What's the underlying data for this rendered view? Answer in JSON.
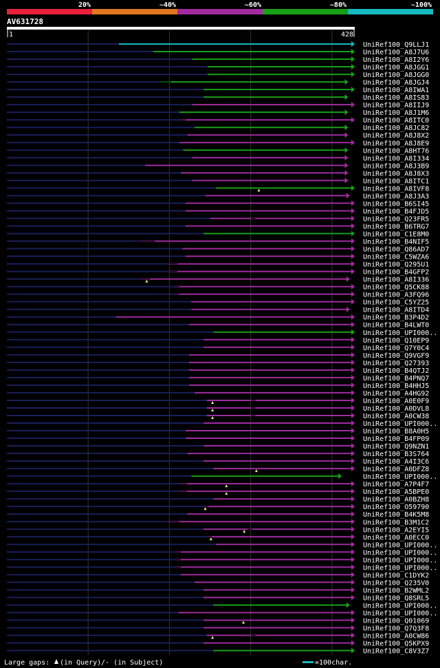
{
  "identity_scale": {
    "labels": [
      "20%",
      "~40%",
      "~60%",
      "~80%",
      "~100%"
    ],
    "colors": [
      "#e8203a",
      "#e07820",
      "#a02ca0",
      "#18a018",
      "#18b8c0"
    ]
  },
  "query": {
    "name": "AV631728",
    "start_label": "1",
    "end_label": "428",
    "length": 428
  },
  "hits": [
    {
      "name": "UniRef100_Q9LLJ1",
      "start": 138,
      "end": 428,
      "color": "cyan",
      "gaps": [],
      "markers": []
    },
    {
      "name": "UniRef100_A8J7U6",
      "start": 180,
      "end": 428,
      "color": "green",
      "gaps": [],
      "markers": []
    },
    {
      "name": "UniRef100_A8I2Y6",
      "start": 228,
      "end": 428,
      "color": "green",
      "gaps": [],
      "markers": []
    },
    {
      "name": "UniRef100_A8JGG1",
      "start": 247,
      "end": 428,
      "color": "green",
      "gaps": [],
      "markers": []
    },
    {
      "name": "UniRef100_A8JGG0",
      "start": 247,
      "end": 428,
      "color": "green",
      "gaps": [],
      "markers": []
    },
    {
      "name": "UniRef100_A8JGJ4",
      "start": 188,
      "end": 420,
      "color": "green",
      "gaps": [
        [
          188,
          202
        ]
      ],
      "markers": []
    },
    {
      "name": "UniRef100_A8IWA1",
      "start": 242,
      "end": 428,
      "color": "green",
      "gaps": [],
      "markers": []
    },
    {
      "name": "UniRef100_A8IS83",
      "start": 242,
      "end": 420,
      "color": "green",
      "gaps": [],
      "markers": []
    },
    {
      "name": "UniRef100_A8IIJ9",
      "start": 228,
      "end": 428,
      "color": "magenta",
      "gaps": [],
      "markers": []
    },
    {
      "name": "UniRef100_A8J1M6",
      "start": 212,
      "end": 420,
      "color": "green",
      "gaps": [],
      "markers": []
    },
    {
      "name": "UniRef100_A8ITC0",
      "start": 212,
      "end": 428,
      "color": "magenta",
      "gaps": [
        [
          212,
          220
        ]
      ],
      "markers": []
    },
    {
      "name": "UniRef100_A8JC82",
      "start": 231,
      "end": 420,
      "color": "green",
      "gaps": [],
      "markers": []
    },
    {
      "name": "UniRef100_A8J8X2",
      "start": 222,
      "end": 420,
      "color": "magenta",
      "gaps": [],
      "markers": []
    },
    {
      "name": "UniRef100_A8J8E9",
      "start": 212,
      "end": 428,
      "color": "magenta",
      "gaps": [],
      "markers": []
    },
    {
      "name": "UniRef100_A8HT76",
      "start": 217,
      "end": 420,
      "color": "green",
      "gaps": [],
      "markers": []
    },
    {
      "name": "UniRef100_A8I334",
      "start": 228,
      "end": 420,
      "color": "magenta",
      "gaps": [],
      "markers": []
    },
    {
      "name": "UniRef100_A8J3B9",
      "start": 170,
      "end": 420,
      "color": "magenta",
      "gaps": [],
      "markers": []
    },
    {
      "name": "UniRef100_A8J8X3",
      "start": 214,
      "end": 420,
      "color": "magenta",
      "gaps": [],
      "markers": []
    },
    {
      "name": "UniRef100_A8ITC1",
      "start": 228,
      "end": 420,
      "color": "magenta",
      "gaps": [],
      "markers": []
    },
    {
      "name": "UniRef100_A8IVF8",
      "start": 257,
      "end": 428,
      "color": "green",
      "gaps": [],
      "markers": [
        310
      ]
    },
    {
      "name": "UniRef100_A8J3A3",
      "start": 244,
      "end": 422,
      "color": "magenta",
      "gaps": [],
      "markers": []
    },
    {
      "name": "UniRef100_B6SI45",
      "start": 220,
      "end": 428,
      "color": "magenta",
      "gaps": [],
      "markers": []
    },
    {
      "name": "UniRef100_B4FJD5",
      "start": 220,
      "end": 428,
      "color": "magenta",
      "gaps": [],
      "markers": []
    },
    {
      "name": "UniRef100_Q23FR5",
      "start": 250,
      "end": 428,
      "color": "magenta",
      "gaps": [
        [
          300,
          306
        ]
      ],
      "markers": []
    },
    {
      "name": "UniRef100_B6TRG7",
      "start": 220,
      "end": 428,
      "color": "magenta",
      "gaps": [],
      "markers": []
    },
    {
      "name": "UniRef100_C1E8M0",
      "start": 242,
      "end": 428,
      "color": "green",
      "gaps": [],
      "markers": []
    },
    {
      "name": "UniRef100_B4NIF5",
      "start": 164,
      "end": 428,
      "color": "magenta",
      "gaps": [
        [
          164,
          182
        ]
      ],
      "markers": []
    },
    {
      "name": "UniRef100_Q86AD7",
      "start": 216,
      "end": 428,
      "color": "magenta",
      "gaps": [],
      "markers": []
    },
    {
      "name": "UniRef100_C5WZA6",
      "start": 220,
      "end": 428,
      "color": "magenta",
      "gaps": [],
      "markers": []
    },
    {
      "name": "UniRef100_Q295U1",
      "start": 199,
      "end": 428,
      "color": "magenta",
      "gaps": [
        [
          199,
          210
        ]
      ],
      "markers": []
    },
    {
      "name": "UniRef100_B4GFP2",
      "start": 199,
      "end": 428,
      "color": "magenta",
      "gaps": [
        [
          199,
          210
        ]
      ],
      "markers": []
    },
    {
      "name": "UniRef100_A8I336",
      "start": 164,
      "end": 422,
      "color": "magenta",
      "gaps": [
        [
          164,
          176
        ]
      ],
      "markers": [
        172
      ]
    },
    {
      "name": "UniRef100_Q5CK88",
      "start": 206,
      "end": 428,
      "color": "magenta",
      "gaps": [
        [
          206,
          212
        ]
      ],
      "markers": []
    },
    {
      "name": "UniRef100_A3FQ96",
      "start": 206,
      "end": 428,
      "color": "magenta",
      "gaps": [
        [
          206,
          212
        ]
      ],
      "markers": []
    },
    {
      "name": "UniRef100_C5YZ25",
      "start": 227,
      "end": 428,
      "color": "magenta",
      "gaps": [],
      "markers": []
    },
    {
      "name": "UniRef100_A8ITD4",
      "start": 227,
      "end": 422,
      "color": "magenta",
      "gaps": [],
      "markers": []
    },
    {
      "name": "UniRef100_B3P4D2",
      "start": 134,
      "end": 428,
      "color": "magenta",
      "gaps": [],
      "markers": []
    },
    {
      "name": "UniRef100_B4LWT0",
      "start": 224,
      "end": 428,
      "color": "magenta",
      "gaps": [],
      "markers": []
    },
    {
      "name": "UniRef100_UPI000..",
      "start": 254,
      "end": 428,
      "color": "green",
      "gaps": [],
      "markers": []
    },
    {
      "name": "UniRef100_Q10EP9",
      "start": 242,
      "end": 428,
      "color": "magenta",
      "gaps": [],
      "markers": []
    },
    {
      "name": "UniRef100_Q7Y0C4",
      "start": 242,
      "end": 428,
      "color": "magenta",
      "gaps": [],
      "markers": []
    },
    {
      "name": "UniRef100_Q9VGF9",
      "start": 224,
      "end": 428,
      "color": "magenta",
      "gaps": [],
      "markers": []
    },
    {
      "name": "UniRef100_Q27393",
      "start": 224,
      "end": 428,
      "color": "magenta",
      "gaps": [],
      "markers": []
    },
    {
      "name": "UniRef100_B4QTJ2",
      "start": 224,
      "end": 428,
      "color": "magenta",
      "gaps": [],
      "markers": []
    },
    {
      "name": "UniRef100_B4PNQ7",
      "start": 224,
      "end": 428,
      "color": "magenta",
      "gaps": [],
      "markers": []
    },
    {
      "name": "UniRef100_B4HHJ5",
      "start": 224,
      "end": 428,
      "color": "magenta",
      "gaps": [],
      "markers": []
    },
    {
      "name": "UniRef100_A4HG92",
      "start": 231,
      "end": 428,
      "color": "magenta",
      "gaps": [],
      "markers": []
    },
    {
      "name": "UniRef100_A0E0F9",
      "start": 246,
      "end": 428,
      "color": "magenta",
      "gaps": [
        [
          300,
          306
        ]
      ],
      "markers": [
        253
      ]
    },
    {
      "name": "UniRef100_A0DVL8",
      "start": 246,
      "end": 428,
      "color": "magenta",
      "gaps": [
        [
          300,
          306
        ]
      ],
      "markers": [
        253
      ]
    },
    {
      "name": "UniRef100_A0CW38",
      "start": 246,
      "end": 428,
      "color": "magenta",
      "gaps": [
        [
          300,
          306
        ]
      ],
      "markers": [
        253
      ]
    },
    {
      "name": "UniRef100_UPI000..",
      "start": 242,
      "end": 428,
      "color": "magenta",
      "gaps": [],
      "markers": []
    },
    {
      "name": "UniRef100_B8A0H5",
      "start": 220,
      "end": 428,
      "color": "magenta",
      "gaps": [],
      "markers": []
    },
    {
      "name": "UniRef100_B4FP09",
      "start": 220,
      "end": 428,
      "color": "magenta",
      "gaps": [],
      "markers": []
    },
    {
      "name": "UniRef100_Q9NZN1",
      "start": 242,
      "end": 428,
      "color": "magenta",
      "gaps": [],
      "markers": []
    },
    {
      "name": "UniRef100_B3S764",
      "start": 222,
      "end": 428,
      "color": "magenta",
      "gaps": [],
      "markers": []
    },
    {
      "name": "UniRef100_A4I3C6",
      "start": 242,
      "end": 428,
      "color": "magenta",
      "gaps": [],
      "markers": []
    },
    {
      "name": "UniRef100_A0DFZ8",
      "start": 254,
      "end": 428,
      "color": "magenta",
      "gaps": [],
      "markers": [
        307
      ]
    },
    {
      "name": "UniRef100_UPI000..",
      "start": 227,
      "end": 412,
      "color": "green",
      "gaps": [],
      "markers": []
    },
    {
      "name": "UniRef100_A7P4F7",
      "start": 212,
      "end": 428,
      "color": "magenta",
      "gaps": [
        [
          212,
          222
        ]
      ],
      "markers": [
        270
      ]
    },
    {
      "name": "UniRef100_A5BPE0",
      "start": 212,
      "end": 428,
      "color": "magenta",
      "gaps": [
        [
          212,
          222
        ]
      ],
      "markers": [
        270
      ]
    },
    {
      "name": "UniRef100_A0BZH8",
      "start": 254,
      "end": 428,
      "color": "magenta",
      "gaps": [],
      "markers": []
    },
    {
      "name": "UniRef100_O59790",
      "start": 242,
      "end": 428,
      "color": "magenta",
      "gaps": [
        [
          242,
          248
        ]
      ],
      "markers": [
        244
      ]
    },
    {
      "name": "UniRef100_B4K5M8",
      "start": 222,
      "end": 428,
      "color": "magenta",
      "gaps": [],
      "markers": []
    },
    {
      "name": "UniRef100_B3M1C2",
      "start": 199,
      "end": 428,
      "color": "magenta",
      "gaps": [
        [
          199,
          212
        ]
      ],
      "markers": []
    },
    {
      "name": "UniRef100_A2EYI5",
      "start": 242,
      "end": 428,
      "color": "magenta",
      "gaps": [
        [
          296,
          302
        ]
      ],
      "markers": [
        292
      ]
    },
    {
      "name": "UniRef100_A0ECC0",
      "start": 246,
      "end": 428,
      "color": "magenta",
      "gaps": [
        [
          246,
          252
        ]
      ],
      "markers": [
        251
      ]
    },
    {
      "name": "UniRef100_UPI000..",
      "start": 257,
      "end": 428,
      "color": "magenta",
      "gaps": [],
      "markers": []
    },
    {
      "name": "UniRef100_UPI000..",
      "start": 208,
      "end": 428,
      "color": "magenta",
      "gaps": [
        [
          208,
          214
        ]
      ],
      "markers": []
    },
    {
      "name": "UniRef100_UPI000..",
      "start": 208,
      "end": 428,
      "color": "magenta",
      "gaps": [
        [
          208,
          214
        ]
      ],
      "markers": []
    },
    {
      "name": "UniRef100_UPI000..",
      "start": 208,
      "end": 428,
      "color": "magenta",
      "gaps": [
        [
          208,
          214
        ]
      ],
      "markers": []
    },
    {
      "name": "UniRef100_C1DYK2",
      "start": 214,
      "end": 428,
      "color": "magenta",
      "gaps": [],
      "markers": []
    },
    {
      "name": "UniRef100_Q235V0",
      "start": 231,
      "end": 428,
      "color": "magenta",
      "gaps": [],
      "markers": []
    },
    {
      "name": "UniRef100_B2WML2",
      "start": 242,
      "end": 428,
      "color": "magenta",
      "gaps": [],
      "markers": []
    },
    {
      "name": "UniRef100_Q8SRL5",
      "start": 242,
      "end": 428,
      "color": "magenta",
      "gaps": [],
      "markers": []
    },
    {
      "name": "UniRef100_UPI000..",
      "start": 254,
      "end": 422,
      "color": "green",
      "gaps": [],
      "markers": []
    },
    {
      "name": "UniRef100_UPI000..",
      "start": 211,
      "end": 428,
      "color": "magenta",
      "gaps": [],
      "markers": []
    },
    {
      "name": "UniRef100_Q01069",
      "start": 242,
      "end": 428,
      "color": "magenta",
      "gaps": [],
      "markers": [
        291
      ]
    },
    {
      "name": "UniRef100_Q7Q3F8",
      "start": 242,
      "end": 428,
      "color": "magenta",
      "gaps": [],
      "markers": []
    },
    {
      "name": "UniRef100_A0CW86",
      "start": 246,
      "end": 428,
      "color": "magenta",
      "gaps": [
        [
          300,
          306
        ]
      ],
      "markers": [
        253
      ]
    },
    {
      "name": "UniRef100_Q5KPX9",
      "start": 242,
      "end": 428,
      "color": "magenta",
      "gaps": [],
      "markers": []
    },
    {
      "name": "UniRef100_C8V3Z7",
      "start": 254,
      "end": 428,
      "color": "green",
      "gaps": [],
      "markers": []
    }
  ],
  "legend": {
    "gaps_label": "Large gaps:",
    "gaps_query": "(in Query)",
    "gaps_subject": "/- (in Subject)",
    "scale_label": "=100char."
  },
  "colors": {
    "cyan": "#18b8c0",
    "green": "#18a018",
    "magenta": "#a02ca0",
    "query_line": "#1a1f5a",
    "grid": "#2e3a2e",
    "marker": "#f0f080"
  }
}
